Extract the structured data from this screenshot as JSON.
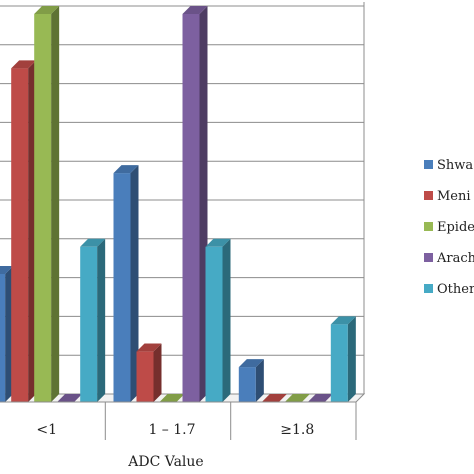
{
  "chart_data": {
    "type": "bar",
    "style": "3d-clustered-column",
    "xlabel": "ADC Value",
    "ylabel": "",
    "categories": [
      "<1",
      "1 – 1.7",
      "≥1.8"
    ],
    "ylim": [
      0,
      100
    ],
    "grid": true,
    "legend_position": "right",
    "series": [
      {
        "name": "Shwa",
        "color": "#4a7ebb",
        "values": [
          33,
          59,
          9
        ]
      },
      {
        "name": "Meni",
        "color": "#be4b48",
        "values": [
          86,
          13,
          0
        ]
      },
      {
        "name": "Epide",
        "color": "#98b954",
        "values": [
          100,
          0,
          0
        ]
      },
      {
        "name": "Arach",
        "color": "#7d60a0",
        "values": [
          0,
          100,
          0
        ]
      },
      {
        "name": "Other",
        "color": "#46aac5",
        "values": [
          40,
          40,
          20
        ]
      }
    ]
  }
}
